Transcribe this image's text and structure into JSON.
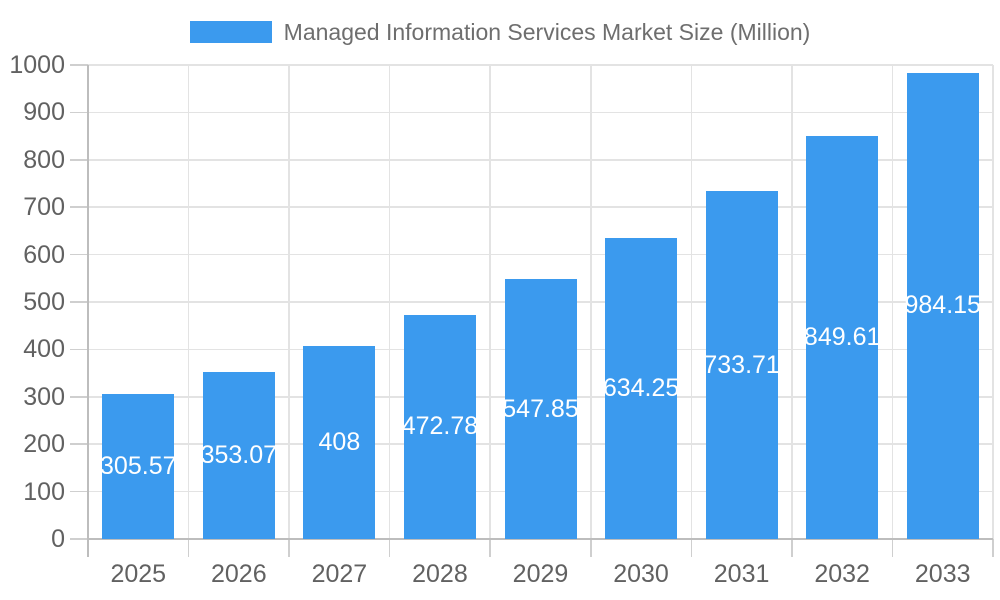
{
  "legend": {
    "label": "Managed Information Services Market Size (Million)"
  },
  "colors": {
    "bar": "#3b9aee",
    "bar_label_text": "#ffffff",
    "grid": "#e3e3e3",
    "axis": "#bdbdbd",
    "tick": "#cfcfcf",
    "tick_label_text": "#616161",
    "legend_text": "#6e6e6e"
  },
  "chart_data": {
    "type": "bar",
    "title": "Managed Information Services Market Size (Million)",
    "categories": [
      "2025",
      "2026",
      "2027",
      "2028",
      "2029",
      "2030",
      "2031",
      "2032",
      "2033"
    ],
    "values": [
      305.57,
      353.07,
      408,
      472.78,
      547.85,
      634.25,
      733.71,
      849.61,
      984.15
    ],
    "bar_labels": [
      "305.57",
      "353.07",
      "408",
      "472.78",
      "547.85",
      "634.25",
      "733.71",
      "849.61",
      "984.15"
    ],
    "xlabel": "",
    "ylabel": "",
    "ylim": [
      0,
      1000
    ],
    "ytick_step": 100,
    "yticks": [
      0,
      100,
      200,
      300,
      400,
      500,
      600,
      700,
      800,
      900,
      1000
    ],
    "grid": true,
    "legend_position": "top"
  }
}
